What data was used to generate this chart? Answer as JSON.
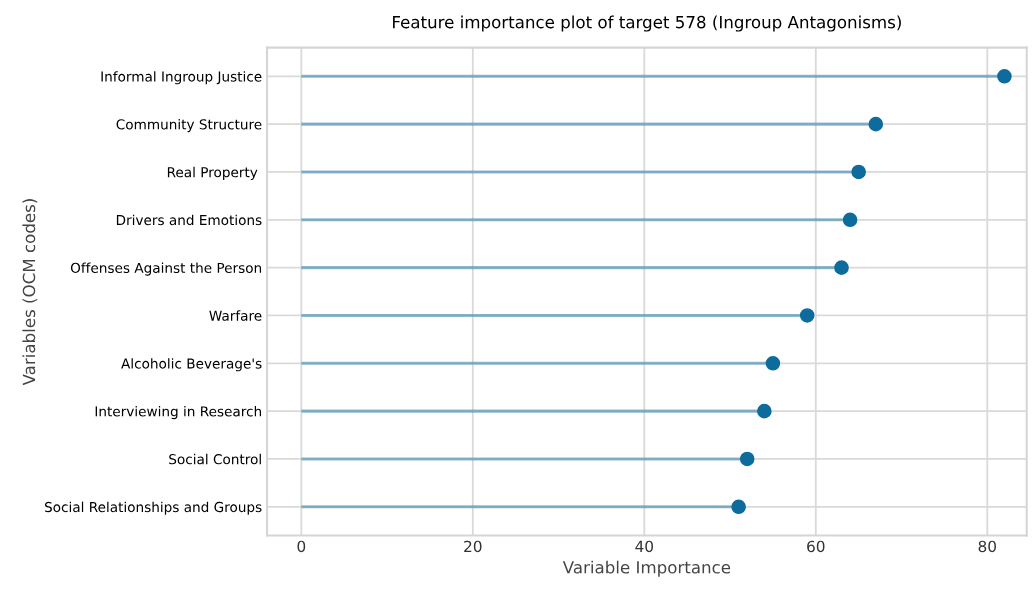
{
  "chart_data": {
    "type": "lollipop",
    "orientation": "horizontal",
    "title": "Feature importance plot of target 578 (Ingroup Antagonisms)",
    "xlabel": "Variable Importance",
    "ylabel": "Variables (OCM codes)",
    "categories": [
      "Informal Ingroup Justice",
      "Community Structure",
      "Real Property ",
      "Drivers and Emotions",
      "Offenses Against the Person",
      "Warfare",
      "Alcoholic Beverage's",
      "Interviewing in Research",
      "Social Control",
      "Social Relationships and Groups"
    ],
    "series": [
      {
        "color": "#0e6c9c",
        "values": [
          82,
          67,
          65,
          64,
          63,
          59,
          55,
          54,
          52,
          51
        ]
      }
    ],
    "xlim": [
      -4,
      84.6
    ],
    "xticks": [
      0,
      20,
      40,
      60,
      80
    ],
    "grid": true,
    "marker": "circle"
  }
}
